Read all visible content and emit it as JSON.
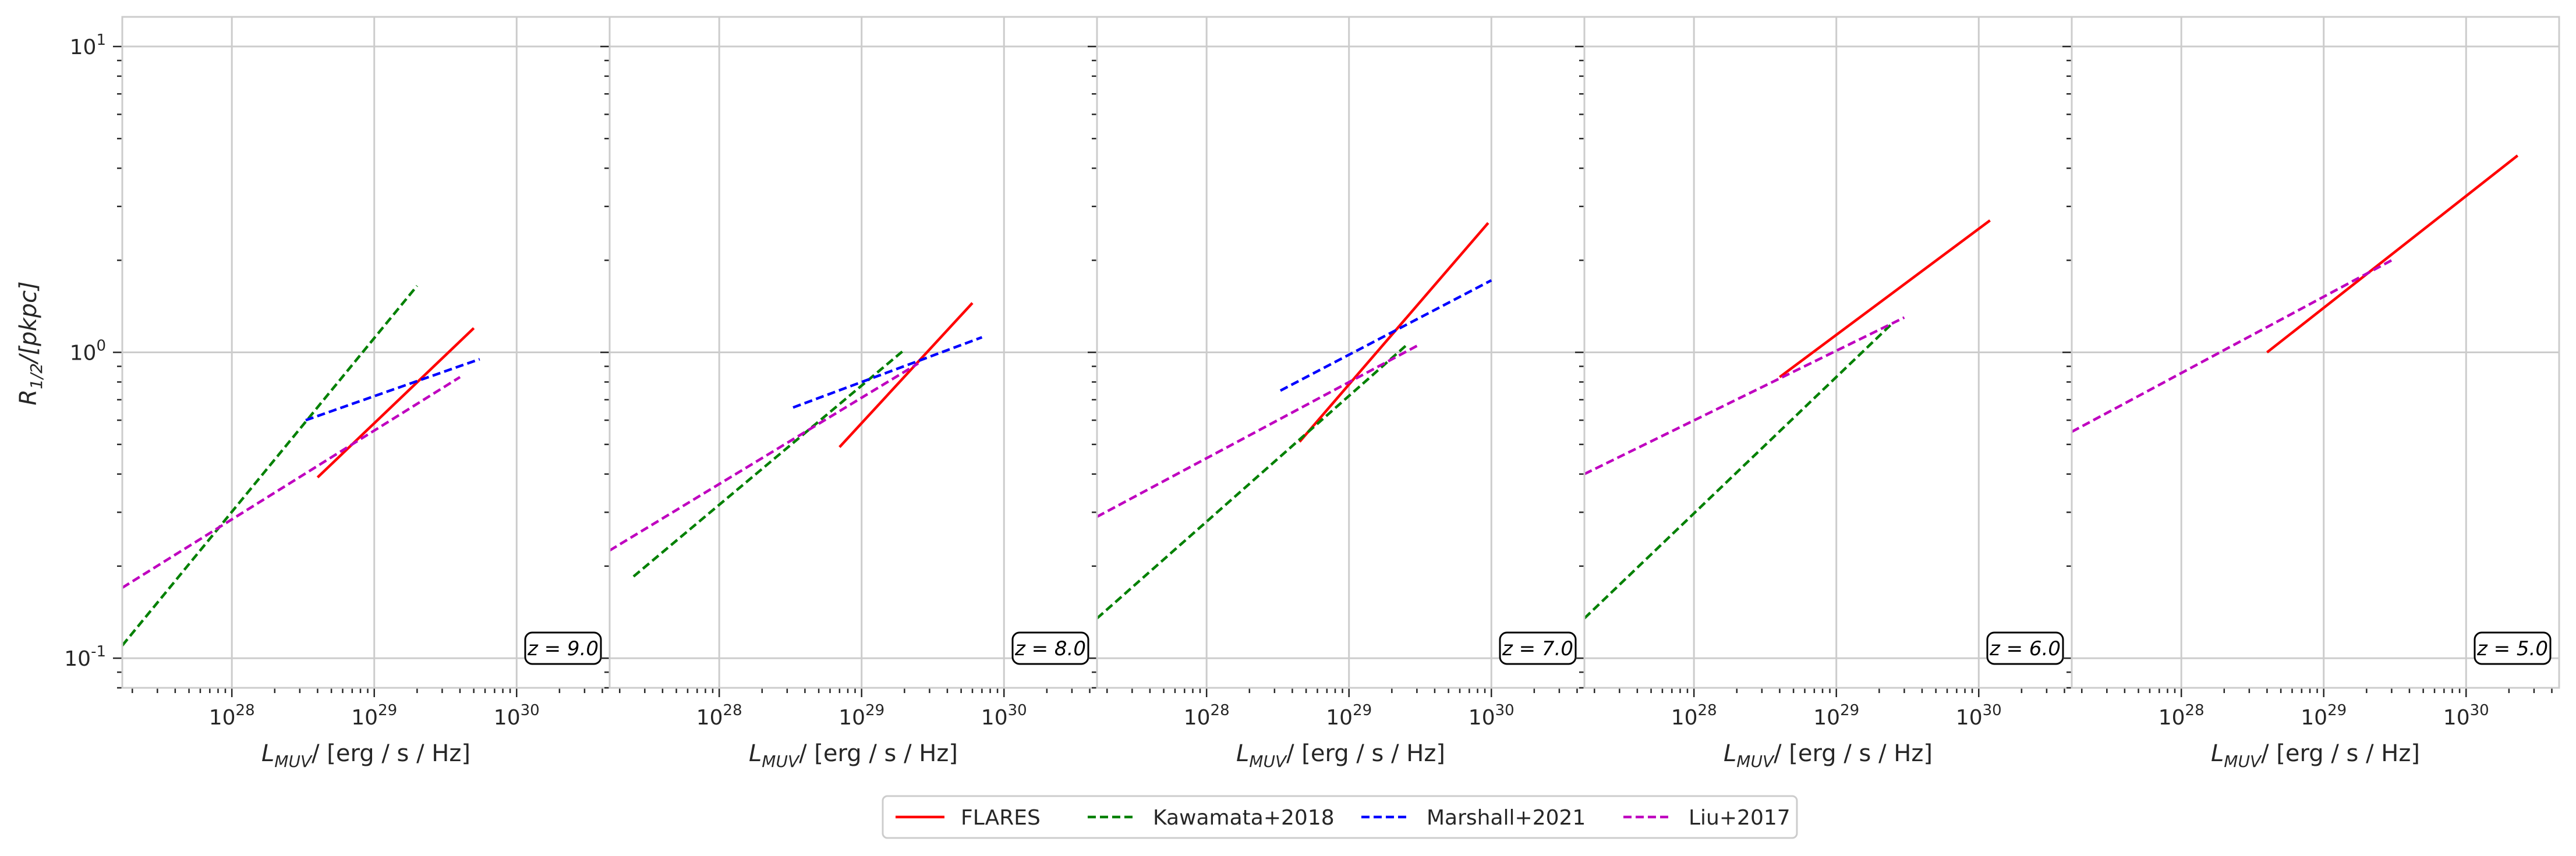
{
  "figure": {
    "panel_ylabel_main": "R",
    "panel_ylabel_sub": "1/2",
    "panel_ylabel_tail": "/[pkpc]",
    "panel_xlabel_main": "L",
    "panel_xlabel_sub": "MUV",
    "panel_xlabel_tail": "/ [erg / s / Hz]"
  },
  "chart_data": [
    {
      "type": "line",
      "xscale": "log",
      "yscale": "log",
      "xlim": [
        1.7e+27,
        4.5e+30
      ],
      "ylim": [
        0.08,
        12.5
      ],
      "grid": true,
      "annotation": "z = 9.0",
      "x_ticks": [
        {
          "exp": 28
        },
        {
          "exp": 29
        },
        {
          "exp": 30
        }
      ],
      "y_ticks": [
        {
          "exp": -1
        },
        {
          "exp": 0
        },
        {
          "exp": 1
        }
      ],
      "series": [
        {
          "name": "FLARES",
          "color": "#ff0000",
          "dash": "solid",
          "x": [
            4e+28,
            5e+29
          ],
          "y": [
            0.39,
            1.2
          ]
        },
        {
          "name": "Kawamata+2018",
          "color": "#008000",
          "dash": "dashed",
          "x": [
            1.7e+27,
            2e+29
          ],
          "y": [
            0.11,
            1.65
          ]
        },
        {
          "name": "Marshall+2021",
          "color": "#0000ff",
          "dash": "dashed",
          "x": [
            3.3e+28,
            5.5e+29
          ],
          "y": [
            0.6,
            0.95
          ]
        },
        {
          "name": "Liu+2017",
          "color": "#bf00bf",
          "dash": "dashed",
          "x": [
            1.7e+27,
            4e+29
          ],
          "y": [
            0.17,
            0.83
          ]
        }
      ]
    },
    {
      "type": "line",
      "xscale": "log",
      "yscale": "log",
      "xlim": [
        1.7e+27,
        4.5e+30
      ],
      "ylim": [
        0.08,
        12.5
      ],
      "grid": true,
      "annotation": "z = 8.0",
      "x_ticks": [
        {
          "exp": 28
        },
        {
          "exp": 29
        },
        {
          "exp": 30
        }
      ],
      "series": [
        {
          "name": "FLARES",
          "color": "#ff0000",
          "dash": "solid",
          "x": [
            7e+28,
            6e+29
          ],
          "y": [
            0.49,
            1.45
          ]
        },
        {
          "name": "Kawamata+2018",
          "color": "#008000",
          "dash": "dashed",
          "x": [
            2.5e+27,
            2e+29
          ],
          "y": [
            0.185,
            1.02
          ]
        },
        {
          "name": "Marshall+2021",
          "color": "#0000ff",
          "dash": "dashed",
          "x": [
            3.3e+28,
            7e+29
          ],
          "y": [
            0.66,
            1.12
          ]
        },
        {
          "name": "Liu+2017",
          "color": "#bf00bf",
          "dash": "dashed",
          "x": [
            1.7e+27,
            2.5e+29
          ],
          "y": [
            0.225,
            0.92
          ]
        }
      ]
    },
    {
      "type": "line",
      "xscale": "log",
      "yscale": "log",
      "xlim": [
        1.7e+27,
        4.5e+30
      ],
      "ylim": [
        0.08,
        12.5
      ],
      "grid": true,
      "annotation": "z = 7.0",
      "x_ticks": [
        {
          "exp": 28
        },
        {
          "exp": 29
        },
        {
          "exp": 30
        }
      ],
      "series": [
        {
          "name": "FLARES",
          "color": "#ff0000",
          "dash": "solid",
          "x": [
            4.5e+28,
            9.5e+29
          ],
          "y": [
            0.51,
            2.65
          ]
        },
        {
          "name": "Kawamata+2018",
          "color": "#008000",
          "dash": "dashed",
          "x": [
            1.7e+27,
            2.5e+29
          ],
          "y": [
            0.135,
            1.05
          ]
        },
        {
          "name": "Marshall+2021",
          "color": "#0000ff",
          "dash": "dashed",
          "x": [
            3.3e+28,
            1e+30
          ],
          "y": [
            0.75,
            1.72
          ]
        },
        {
          "name": "Liu+2017",
          "color": "#bf00bf",
          "dash": "dashed",
          "x": [
            1.7e+27,
            3e+29
          ],
          "y": [
            0.29,
            1.05
          ]
        }
      ]
    },
    {
      "type": "line",
      "xscale": "log",
      "yscale": "log",
      "xlim": [
        1.7e+27,
        4.5e+30
      ],
      "ylim": [
        0.08,
        12.5
      ],
      "grid": true,
      "annotation": "z = 6.0",
      "x_ticks": [
        {
          "exp": 28
        },
        {
          "exp": 29
        },
        {
          "exp": 30
        }
      ],
      "series": [
        {
          "name": "FLARES",
          "color": "#ff0000",
          "dash": "solid",
          "x": [
            4e+28,
            1.2e+30
          ],
          "y": [
            0.83,
            2.7
          ]
        },
        {
          "name": "Kawamata+2018",
          "color": "#008000",
          "dash": "dashed",
          "x": [
            1.7e+27,
            2.5e+29
          ],
          "y": [
            0.135,
            1.25
          ]
        },
        {
          "name": "Liu+2017",
          "color": "#bf00bf",
          "dash": "dashed",
          "x": [
            1.7e+27,
            3e+29
          ],
          "y": [
            0.4,
            1.3
          ]
        }
      ]
    },
    {
      "type": "line",
      "xscale": "log",
      "yscale": "log",
      "xlim": [
        1.7e+27,
        4.5e+30
      ],
      "ylim": [
        0.08,
        12.5
      ],
      "grid": true,
      "annotation": "z = 5.0",
      "x_ticks": [
        {
          "exp": 28
        },
        {
          "exp": 29
        },
        {
          "exp": 30
        }
      ],
      "series": [
        {
          "name": "FLARES",
          "color": "#ff0000",
          "dash": "solid",
          "x": [
            4e+28,
            2.3e+30
          ],
          "y": [
            1.0,
            4.4
          ]
        },
        {
          "name": "Liu+2017",
          "color": "#bf00bf",
          "dash": "dashed",
          "x": [
            1.7e+27,
            3e+29
          ],
          "y": [
            0.55,
            2.0
          ]
        }
      ]
    }
  ],
  "legend": {
    "placement": "bottom-center",
    "entries": [
      {
        "label": "FLARES",
        "color": "#ff0000",
        "dash": "solid"
      },
      {
        "label": "Kawamata+2018",
        "color": "#008000",
        "dash": "dashed"
      },
      {
        "label": "Marshall+2021",
        "color": "#0000ff",
        "dash": "dashed"
      },
      {
        "label": "Liu+2017",
        "color": "#bf00bf",
        "dash": "dashed"
      }
    ]
  }
}
